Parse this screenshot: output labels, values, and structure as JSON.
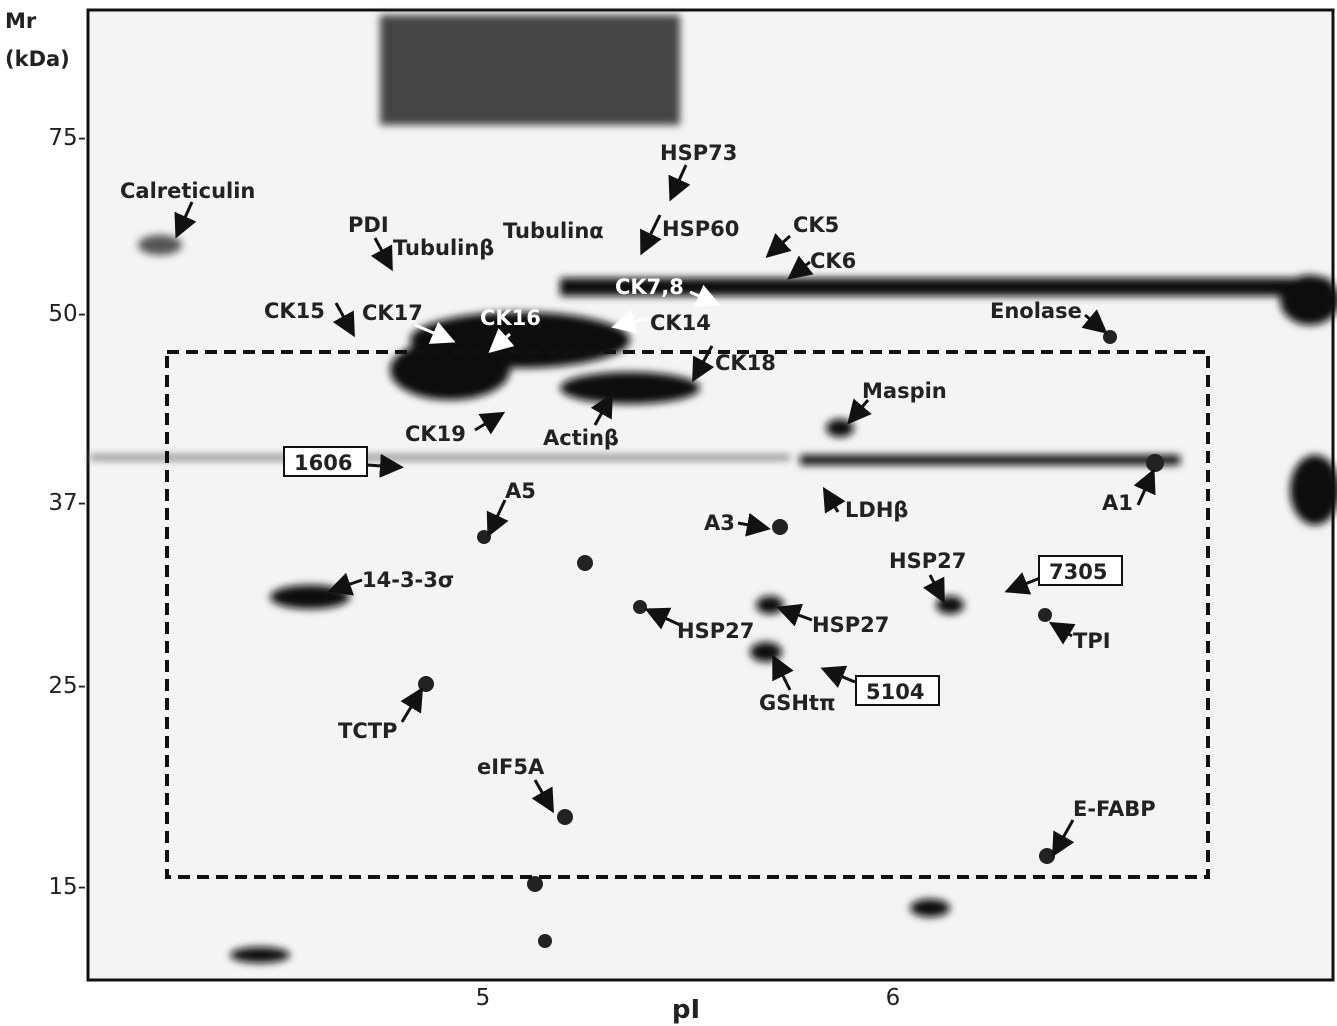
{
  "axes": {
    "y_title_line1": "Mr",
    "y_title_line2": "(kDa)",
    "y_ticks": [
      "75-",
      "50-",
      "37-",
      "25-",
      "15-"
    ],
    "x_ticks": [
      "5",
      "6"
    ],
    "x_title": "pI"
  },
  "labels": [
    "Calreticulin",
    "HSP73",
    "PDI",
    "Tubulinβ",
    "Tubulinα",
    "HSP60",
    "CK5",
    "CK6",
    "CK7,8",
    "CK15",
    "CK17",
    "CK16",
    "CK14",
    "CK18",
    "Enolase",
    "Maspin",
    "CK19",
    "Actinβ",
    "1606",
    "A5",
    "LDHβ",
    "A1",
    "A3",
    "HSP27",
    "7305",
    "14-3-3σ",
    "HSP27",
    "HSP27",
    "TPI",
    "5104",
    "GSHtπ",
    "TCTP",
    "eIF5A",
    "E-FABP"
  ]
}
